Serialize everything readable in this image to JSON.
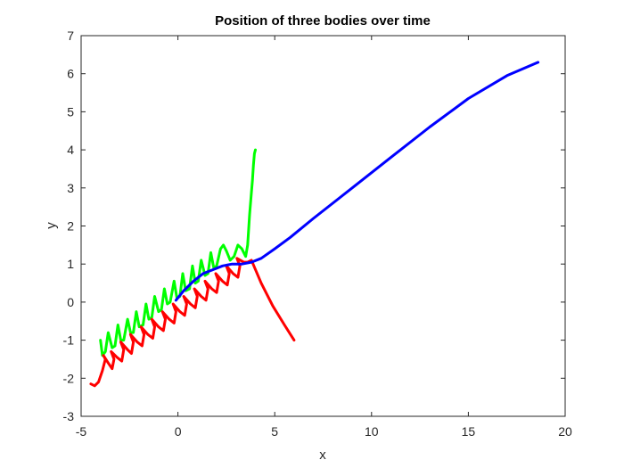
{
  "chart_data": {
    "type": "line",
    "title": "Position of three bodies over time",
    "xlabel": "x",
    "ylabel": "y",
    "xlim": [
      -5,
      20
    ],
    "ylim": [
      -3,
      7
    ],
    "xticks": [
      -5,
      0,
      5,
      10,
      15,
      20
    ],
    "yticks": [
      -3,
      -2,
      -1,
      0,
      1,
      2,
      3,
      4,
      5,
      6,
      7
    ],
    "xtick_labels": [
      "-5",
      "0",
      "5",
      "10",
      "15",
      "20"
    ],
    "ytick_labels": [
      "-3",
      "-2",
      "-1",
      "0",
      "1",
      "2",
      "3",
      "4",
      "5",
      "6",
      "7"
    ],
    "grid": false,
    "legend": "none",
    "series": [
      {
        "color": "#00ff00",
        "x": [
          -4.0,
          -3.9,
          -3.75,
          -3.6,
          -3.4,
          -3.25,
          -3.1,
          -2.95,
          -2.8,
          -2.6,
          -2.45,
          -2.3,
          -2.15,
          -2.0,
          -1.8,
          -1.65,
          -1.5,
          -1.35,
          -1.2,
          -1.0,
          -0.85,
          -0.7,
          -0.55,
          -0.4,
          -0.2,
          -0.05,
          0.1,
          0.25,
          0.4,
          0.6,
          0.75,
          0.9,
          1.05,
          1.2,
          1.4,
          1.55,
          1.7,
          1.85,
          2.0,
          2.2,
          2.35,
          2.5,
          2.7,
          2.9,
          3.1,
          3.3,
          3.5,
          3.6,
          3.7,
          3.8,
          3.85,
          3.9,
          3.95,
          4.0
        ],
        "y": [
          -1.0,
          -1.4,
          -1.3,
          -0.8,
          -1.2,
          -1.15,
          -0.6,
          -1.0,
          -1.0,
          -0.45,
          -0.8,
          -0.8,
          -0.25,
          -0.65,
          -0.6,
          -0.05,
          -0.45,
          -0.4,
          0.15,
          -0.25,
          -0.2,
          0.35,
          -0.05,
          0.0,
          0.55,
          0.1,
          0.15,
          0.75,
          0.3,
          0.35,
          0.95,
          0.5,
          0.55,
          1.1,
          0.7,
          0.75,
          1.3,
          0.9,
          0.95,
          1.4,
          1.5,
          1.35,
          1.1,
          1.2,
          1.5,
          1.4,
          1.2,
          1.5,
          2.3,
          2.9,
          3.2,
          3.6,
          3.9,
          4.0
        ]
      },
      {
        "color": "#ff0000",
        "x": [
          -4.5,
          -4.3,
          -4.1,
          -3.9,
          -3.75,
          -3.85,
          -3.6,
          -3.4,
          -3.3,
          -3.45,
          -3.15,
          -2.9,
          -2.8,
          -2.95,
          -2.6,
          -2.4,
          -2.3,
          -2.45,
          -2.1,
          -1.85,
          -1.75,
          -1.9,
          -1.55,
          -1.3,
          -1.2,
          -1.35,
          -1.0,
          -0.75,
          -0.65,
          -0.8,
          -0.45,
          -0.2,
          -0.1,
          -0.25,
          0.1,
          0.35,
          0.45,
          0.3,
          0.65,
          0.9,
          1.0,
          0.85,
          1.2,
          1.45,
          1.55,
          1.4,
          1.75,
          2.0,
          2.1,
          1.95,
          2.3,
          2.55,
          2.65,
          2.5,
          2.85,
          3.1,
          3.2,
          3.05,
          3.4,
          3.6,
          3.8,
          4.3,
          4.9,
          5.5,
          6.0
        ],
        "y": [
          -2.15,
          -2.2,
          -2.1,
          -1.8,
          -1.5,
          -1.4,
          -1.6,
          -1.75,
          -1.5,
          -1.3,
          -1.45,
          -1.55,
          -1.25,
          -1.05,
          -1.25,
          -1.35,
          -1.05,
          -0.85,
          -1.05,
          -1.15,
          -0.85,
          -0.65,
          -0.85,
          -0.95,
          -0.65,
          -0.45,
          -0.65,
          -0.75,
          -0.45,
          -0.25,
          -0.45,
          -0.55,
          -0.25,
          -0.05,
          -0.25,
          -0.35,
          -0.05,
          0.15,
          -0.05,
          -0.15,
          0.15,
          0.35,
          0.15,
          0.05,
          0.35,
          0.55,
          0.35,
          0.25,
          0.55,
          0.75,
          0.55,
          0.45,
          0.75,
          0.95,
          0.75,
          0.65,
          0.95,
          1.15,
          1.05,
          1.05,
          1.1,
          0.5,
          -0.1,
          -0.6,
          -1.0
        ]
      },
      {
        "color": "#0000ff",
        "x": [
          -0.1,
          0.3,
          0.8,
          1.3,
          1.8,
          2.3,
          2.8,
          3.3,
          3.8,
          4.3,
          5.0,
          5.8,
          7.0,
          9.0,
          11.0,
          13.0,
          15.0,
          17.0,
          18.6
        ],
        "y": [
          0.05,
          0.3,
          0.55,
          0.75,
          0.85,
          0.95,
          1.0,
          1.0,
          1.05,
          1.15,
          1.4,
          1.7,
          2.2,
          3.0,
          3.8,
          4.6,
          5.35,
          5.95,
          6.3
        ]
      }
    ]
  }
}
